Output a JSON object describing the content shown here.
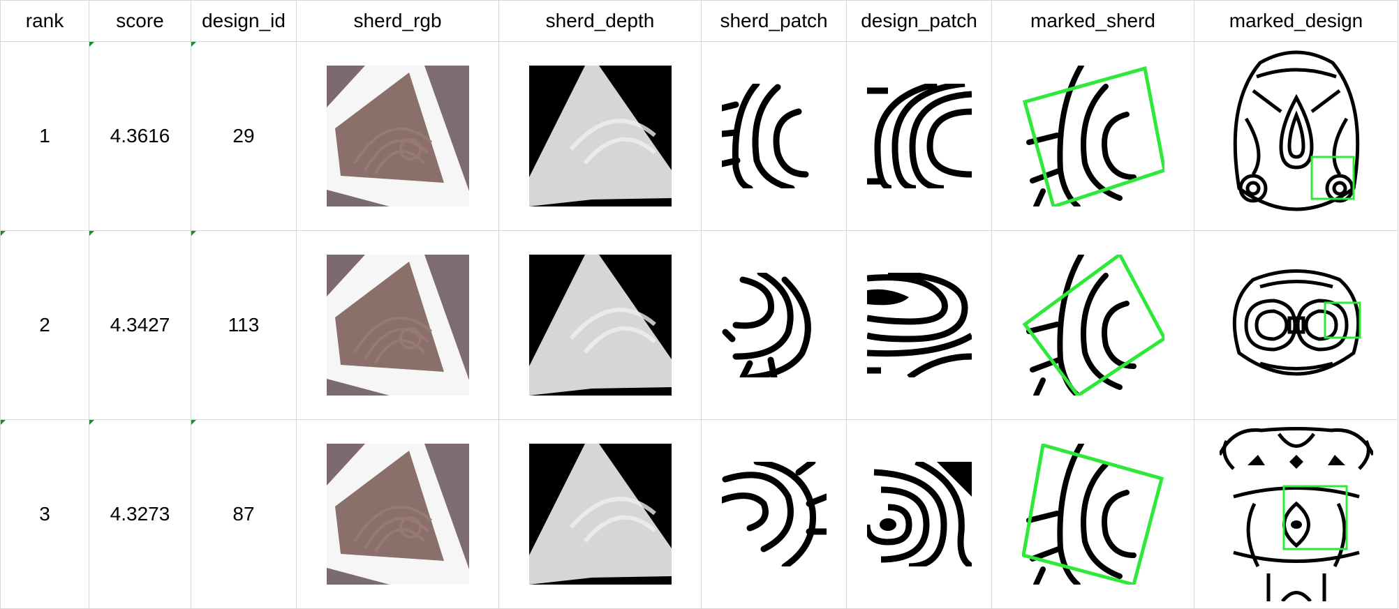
{
  "colors": {
    "grid_line": "#d6d6d6",
    "cell_marker": "#1e8a2e",
    "match_box": "#2ee83a",
    "ink": "#000000",
    "sherd_clay": "#8a6f6a",
    "sherd_background": "#f6f6f6",
    "depth_background": "#000000"
  },
  "columns": [
    {
      "key": "rank",
      "label": "rank"
    },
    {
      "key": "score",
      "label": "score"
    },
    {
      "key": "design_id",
      "label": "design_id"
    },
    {
      "key": "sherd_rgb",
      "label": "sherd_rgb"
    },
    {
      "key": "sherd_depth",
      "label": "sherd_depth"
    },
    {
      "key": "sherd_patch",
      "label": "sherd_patch"
    },
    {
      "key": "design_patch",
      "label": "design_patch"
    },
    {
      "key": "marked_sherd",
      "label": "marked_sherd"
    },
    {
      "key": "marked_design",
      "label": "marked_design"
    }
  ],
  "rows": [
    {
      "rank": "1",
      "score": "4.3616",
      "design_id": "29"
    },
    {
      "rank": "2",
      "score": "4.3427",
      "design_id": "113"
    },
    {
      "rank": "3",
      "score": "4.3273",
      "design_id": "87"
    }
  ]
}
